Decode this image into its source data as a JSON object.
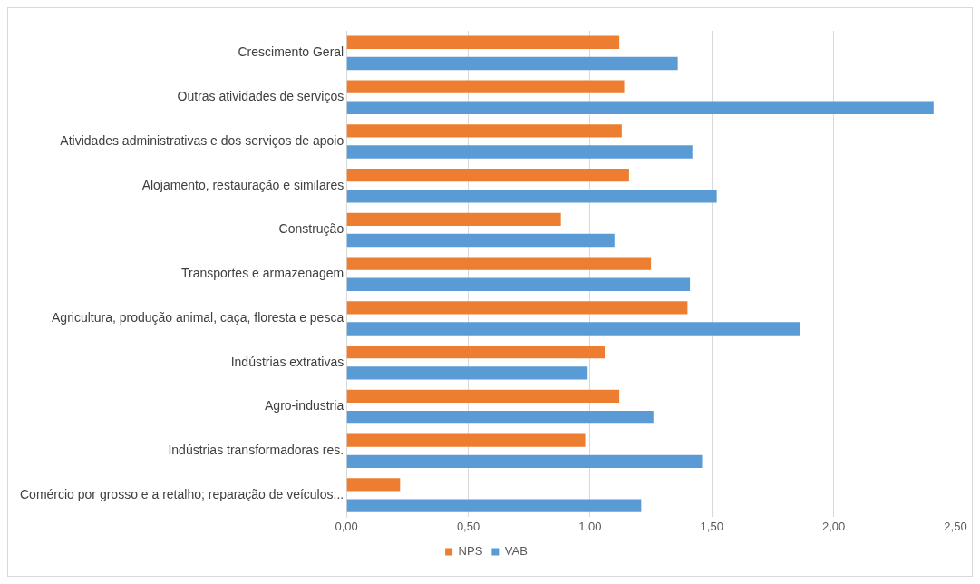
{
  "chart_data": {
    "type": "bar",
    "orientation": "horizontal",
    "categories": [
      "Crescimento Geral",
      "Outras atividades de serviços",
      "Atividades administrativas e dos serviços de apoio",
      "Alojamento, restauração e similares",
      "Construção",
      "Transportes e armazenagem",
      "Agricultura, produção animal, caça, floresta e pesca",
      "Indústrias extrativas",
      "Agro-industria",
      "Indústrias transformadoras res.",
      "Comércio por grosso e a retalho; reparação de veículos..."
    ],
    "series": [
      {
        "name": "NPS",
        "color": "#ed7d31",
        "values": [
          1.12,
          1.14,
          1.13,
          1.16,
          0.88,
          1.25,
          1.4,
          1.06,
          1.12,
          0.98,
          0.22
        ]
      },
      {
        "name": "VAB",
        "color": "#5b9bd5",
        "values": [
          1.36,
          2.41,
          1.42,
          1.52,
          1.1,
          1.41,
          1.86,
          0.99,
          1.26,
          1.46,
          1.21
        ]
      }
    ],
    "xlim": [
      0,
      2.5
    ],
    "xticks": [
      {
        "value": 0,
        "label": "0,00"
      },
      {
        "value": 0.5,
        "label": "0,50"
      },
      {
        "value": 1,
        "label": "1,00"
      },
      {
        "value": 1.5,
        "label": "1,50"
      },
      {
        "value": 2,
        "label": "2,00"
      },
      {
        "value": 2.5,
        "label": "2,50"
      }
    ],
    "grid": "x",
    "legend": "bottom"
  }
}
